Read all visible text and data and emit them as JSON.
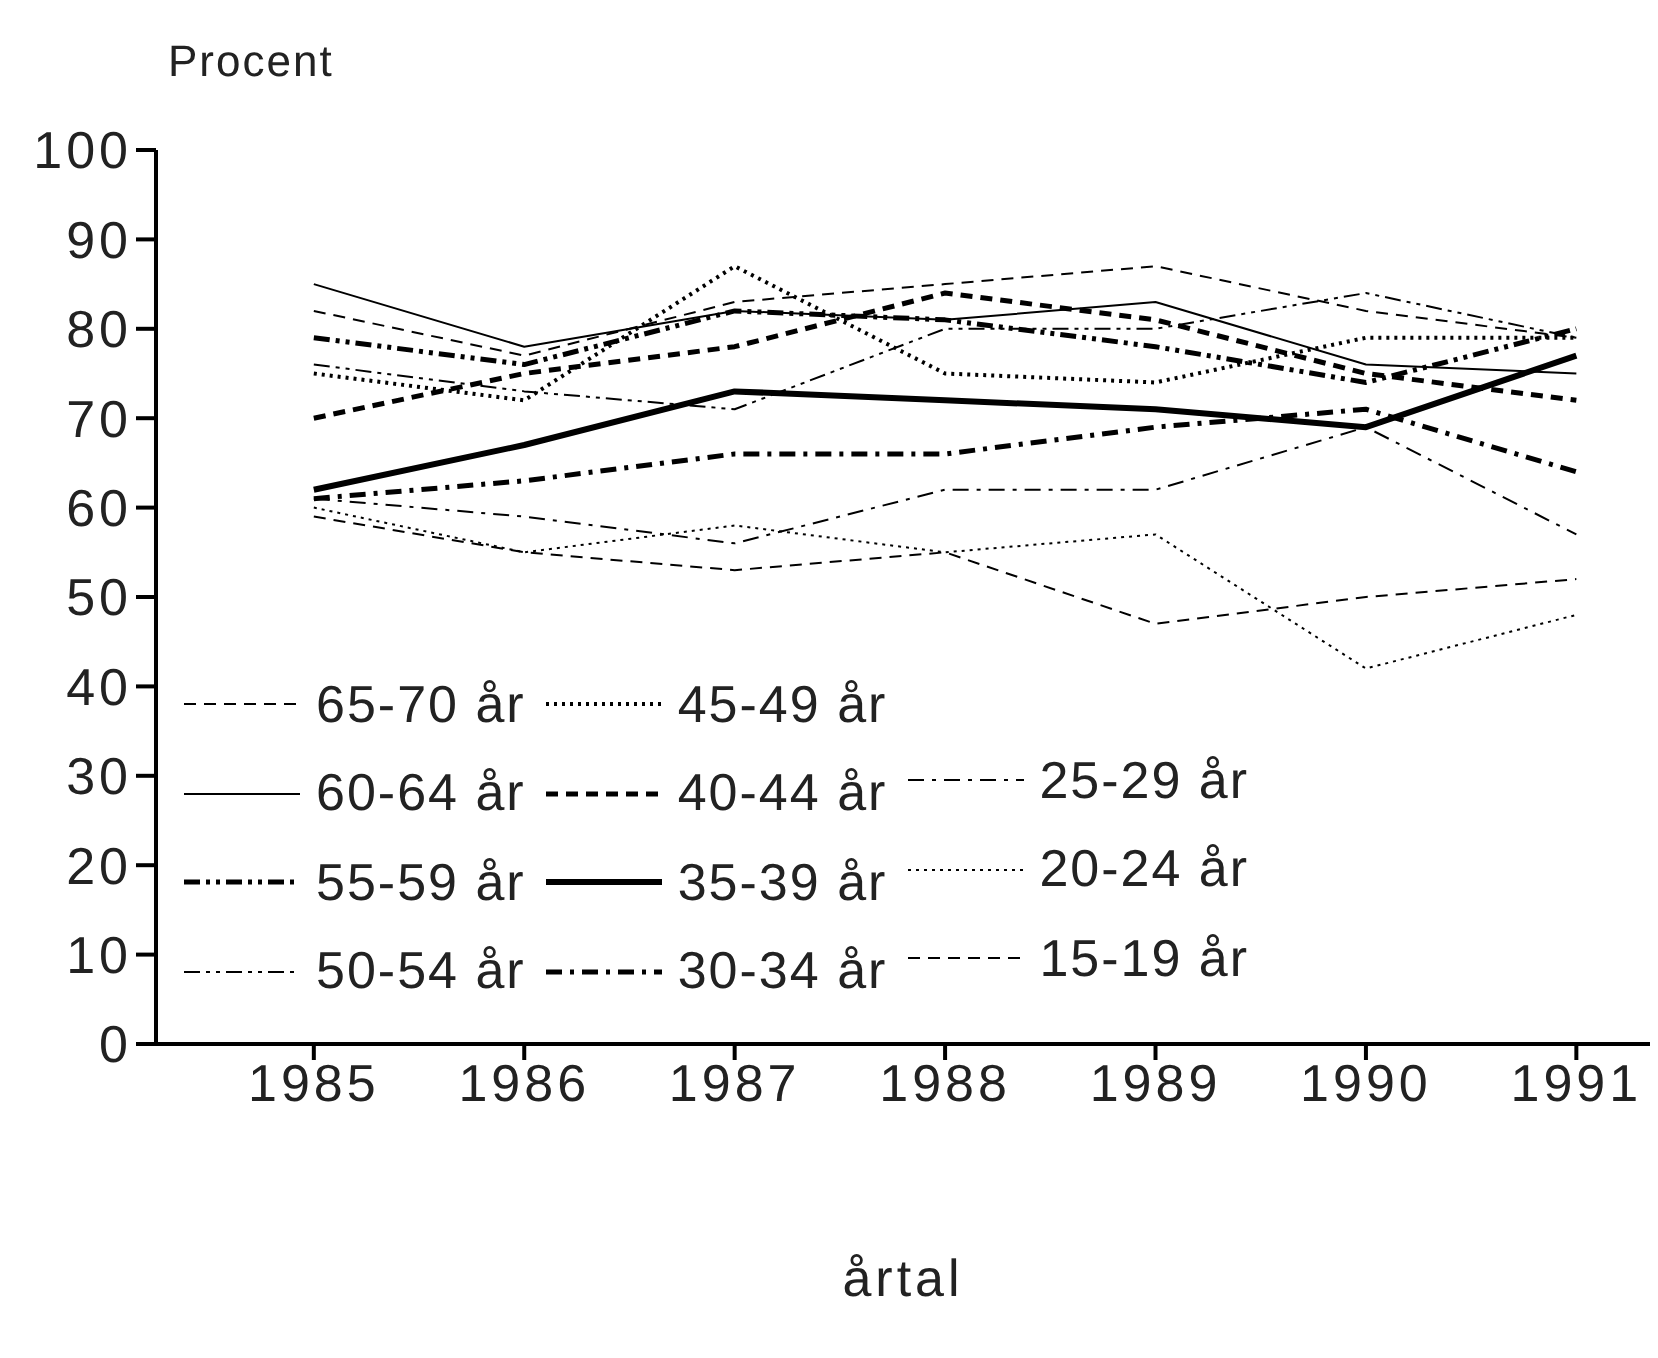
{
  "chart_data": {
    "type": "line",
    "xlabel": "årtal",
    "ylabel": "Procent",
    "x": [
      1985,
      1986,
      1987,
      1988,
      1989,
      1990,
      1991
    ],
    "xlim": [
      1984.25,
      1991.35
    ],
    "xticks": [
      1985,
      1986,
      1987,
      1988,
      1989,
      1990,
      1991
    ],
    "ylim": [
      0,
      100
    ],
    "yticks": [
      0,
      10,
      20,
      30,
      40,
      50,
      60,
      70,
      80,
      90,
      100
    ],
    "grid": false,
    "legend": "bottom left",
    "marker": "none",
    "series": [
      {
        "name": "65-70 år",
        "color": "#000000",
        "line_style": "dashed",
        "values": [
          82,
          77,
          83,
          85,
          87,
          82,
          79
        ]
      },
      {
        "name": "60-64 år",
        "color": "#000000",
        "line_style": "solid",
        "values": [
          85,
          78,
          82,
          81,
          83,
          76,
          75
        ]
      },
      {
        "name": "55-59 år",
        "color": "#000000",
        "line_style": "dashdotdot",
        "values": [
          79,
          76,
          82,
          81,
          78,
          74,
          80
        ]
      },
      {
        "name": "50-54 år",
        "color": "#000000",
        "line_style": "dashdotdot",
        "values": [
          76,
          73,
          71,
          80,
          80,
          84,
          79
        ]
      },
      {
        "name": "45-49 år",
        "color": "#000000",
        "line_style": "dotted",
        "values": [
          75,
          72,
          87,
          75,
          74,
          79,
          79
        ]
      },
      {
        "name": "40-44 år",
        "color": "#000000",
        "line_style": "dashed",
        "values": [
          70,
          75,
          78,
          84,
          81,
          75,
          72
        ]
      },
      {
        "name": "35-39 år",
        "color": "#000000",
        "line_style": "solid",
        "values": [
          62,
          67,
          73,
          72,
          71,
          69,
          77
        ]
      },
      {
        "name": "30-34 år",
        "color": "#000000",
        "line_style": "dashdot",
        "values": [
          61,
          63,
          66,
          66,
          69,
          71,
          64
        ]
      },
      {
        "name": "25-29 år",
        "color": "#000000",
        "line_style": "dashdot",
        "values": [
          61,
          59,
          56,
          62,
          62,
          69,
          57
        ]
      },
      {
        "name": "20-24 år",
        "color": "#000000",
        "line_style": "dotted",
        "values": [
          60,
          55,
          58,
          55,
          57,
          42,
          48
        ]
      },
      {
        "name": "15-19 år",
        "color": "#000000",
        "line_style": "dashed",
        "values": [
          59,
          55,
          53,
          55,
          47,
          50,
          52
        ]
      }
    ]
  }
}
